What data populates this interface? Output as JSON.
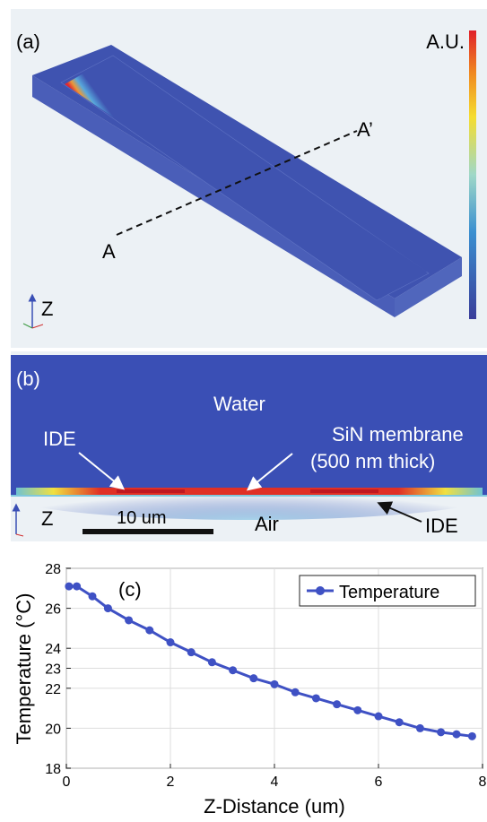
{
  "panel_a": {
    "label": "(a)",
    "colorbar_label": "A.U.",
    "cut_start": "A",
    "cut_end": "A’",
    "axis_label": "Z",
    "colors": {
      "background": "#ecf1f5",
      "slab_top": "#3f53b0",
      "slab_side": "#4a60b8",
      "hot": "#e0202a"
    }
  },
  "panel_b": {
    "label": "(b)",
    "water": "Water",
    "ide_left": "IDE",
    "membrane_line1": "SiN membrane",
    "membrane_line2": "(500 nm thick)",
    "air": "Air",
    "ide_right": "IDE",
    "axis_label": "Z",
    "scalebar": "10 um",
    "colors": {
      "background": "#ecf1f5",
      "field": "#3a4fb5"
    }
  },
  "chart_data": {
    "type": "line",
    "panel_label": "(c)",
    "xlabel": "Z-Distance (um)",
    "ylabel": "Temperature (°C)",
    "xlim": [
      0,
      8
    ],
    "ylim": [
      18,
      28
    ],
    "xticks": [
      "0",
      "2",
      "4",
      "6",
      "8"
    ],
    "yticks": [
      "18",
      "20",
      "22",
      "23",
      "24",
      "26",
      "28"
    ],
    "grid": true,
    "legend_position": "top-right",
    "series": [
      {
        "name": "Temperature",
        "color": "#3f51c4",
        "x": [
          0.05,
          0.2,
          0.5,
          0.8,
          1.2,
          1.6,
          2.0,
          2.4,
          2.8,
          3.2,
          3.6,
          4.0,
          4.4,
          4.8,
          5.2,
          5.6,
          6.0,
          6.4,
          6.8,
          7.2,
          7.5,
          7.8
        ],
        "y": [
          27.1,
          27.1,
          26.6,
          26.0,
          25.4,
          24.9,
          24.3,
          23.8,
          23.3,
          22.9,
          22.5,
          22.2,
          21.8,
          21.5,
          21.2,
          20.9,
          20.6,
          20.3,
          20.0,
          19.8,
          19.7,
          19.6
        ]
      }
    ]
  }
}
